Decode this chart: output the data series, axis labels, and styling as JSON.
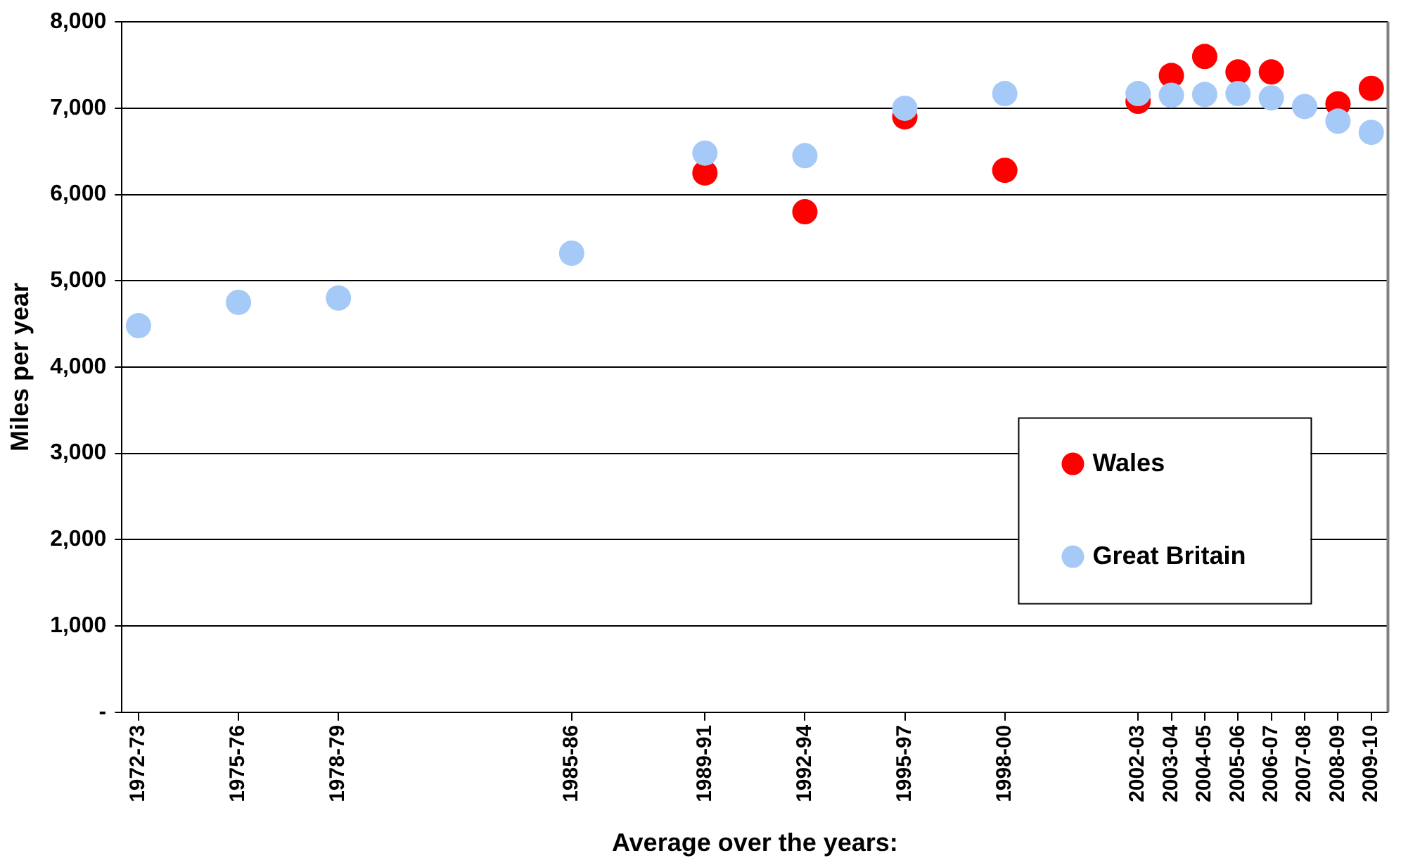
{
  "chart_data": {
    "type": "scatter",
    "xlabel": "Average over the years:",
    "ylabel": "Miles per year",
    "categories": [
      "1972-73",
      null,
      null,
      "1975-76",
      null,
      null,
      "1978-79",
      null,
      null,
      null,
      null,
      null,
      null,
      "1985-86",
      null,
      null,
      null,
      "1989-91",
      null,
      null,
      "1992-94",
      null,
      null,
      "1995-97",
      null,
      null,
      "1998-00",
      null,
      null,
      null,
      "2002-03",
      "2003-04",
      "2004-05",
      "2005-06",
      "2006-07",
      "2007-08",
      "2008-09",
      "2009-10"
    ],
    "ylim": [
      0,
      8000
    ],
    "yticks": [
      {
        "value": 0,
        "label": "-"
      },
      {
        "value": 1000,
        "label": "1,000"
      },
      {
        "value": 2000,
        "label": "2,000"
      },
      {
        "value": 3000,
        "label": "3,000"
      },
      {
        "value": 4000,
        "label": "4,000"
      },
      {
        "value": 5000,
        "label": "5,000"
      },
      {
        "value": 6000,
        "label": "6,000"
      },
      {
        "value": 7000,
        "label": "7,000"
      },
      {
        "value": 8000,
        "label": "8,000"
      }
    ],
    "grid": "y",
    "legend": "right",
    "marker": "circle",
    "series": [
      {
        "name": "Wales",
        "color": "#ff0000",
        "values": [
          null,
          null,
          null,
          null,
          null,
          null,
          null,
          null,
          null,
          null,
          null,
          null,
          null,
          null,
          null,
          null,
          null,
          6250,
          null,
          null,
          5800,
          null,
          null,
          6900,
          null,
          null,
          6280,
          null,
          null,
          null,
          7080,
          7380,
          7600,
          7420,
          7420,
          null,
          7050,
          7230
        ]
      },
      {
        "name": "Great Britain",
        "color": "#a6caf8",
        "values": [
          4480,
          null,
          null,
          4750,
          null,
          null,
          4800,
          null,
          null,
          null,
          null,
          null,
          null,
          5320,
          null,
          null,
          null,
          6480,
          null,
          null,
          6450,
          null,
          null,
          7000,
          null,
          null,
          7170,
          null,
          null,
          null,
          7170,
          7150,
          7160,
          7170,
          7120,
          7020,
          6850,
          6720
        ]
      }
    ]
  }
}
